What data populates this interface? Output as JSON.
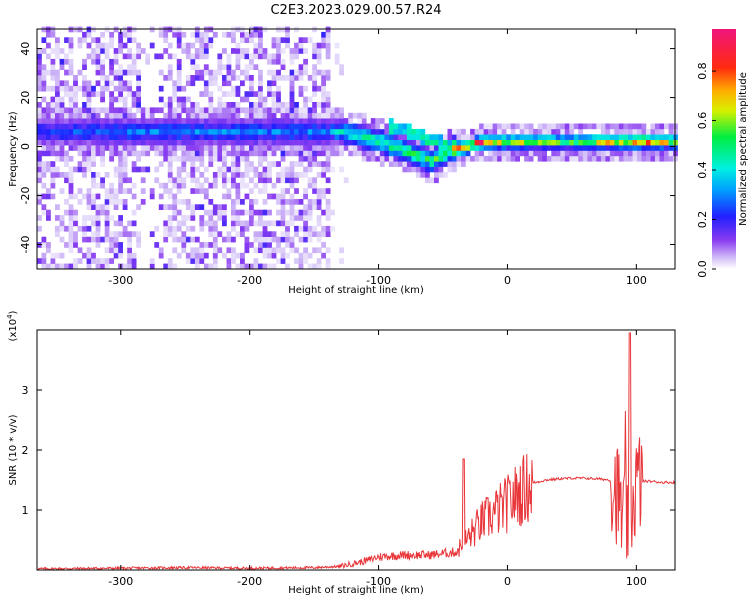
{
  "title": "C2E3.2023.029.00.57.R24",
  "chart_data": [
    {
      "type": "heatmap",
      "xlabel": "Height of straight line (km)",
      "ylabel": "Frequency (Hz)",
      "xlim": [
        -365,
        130
      ],
      "ylim": [
        -50,
        48
      ],
      "xticks": [
        -300,
        -200,
        -100,
        0,
        100
      ],
      "yticks": [
        -40,
        -20,
        0,
        20,
        40
      ],
      "colorbar": {
        "label": "Normalized spectral amplitude",
        "range": [
          0.0,
          0.97
        ],
        "ticks": [
          0.0,
          0.2,
          0.4,
          0.6,
          0.8
        ],
        "colormap": "rainbow (white-violet-blue-cyan-green-yellow-orange-red-magenta)"
      },
      "features": {
        "noise_region_x": [
          -365,
          -140
        ],
        "signal_band": [
          {
            "x": -365,
            "freq": 5,
            "amplitude": 0.25
          },
          {
            "x": -300,
            "freq": 5,
            "amplitude": 0.3
          },
          {
            "x": -140,
            "freq": 5,
            "amplitude": 0.3
          },
          {
            "x": -130,
            "freq": 5,
            "amplitude": 0.45
          },
          {
            "x": -100,
            "freq": 1,
            "amplitude": 0.5
          },
          {
            "x": -80,
            "freq": -3,
            "amplitude": 0.55
          },
          {
            "x": -60,
            "freq": -7,
            "amplitude": 0.5
          },
          {
            "x": -45,
            "freq": -2,
            "amplitude": 0.6
          },
          {
            "x": -40,
            "freq": -2,
            "amplitude": 0.9
          },
          {
            "x": -20,
            "freq": 1,
            "amplitude": 0.85
          },
          {
            "x": 0,
            "freq": 1,
            "amplitude": 0.7
          },
          {
            "x": 50,
            "freq": 1,
            "amplitude": 0.6
          },
          {
            "x": 100,
            "freq": 1,
            "amplitude": 0.85
          },
          {
            "x": 130,
            "freq": 1,
            "amplitude": 0.65
          }
        ]
      }
    },
    {
      "type": "line",
      "xlabel": "Height of straight line (km)",
      "ylabel": "SNR (10 * v/v)",
      "yscale_label": "(x10",
      "yscale_exp": "4",
      "yscale_close": ")",
      "xlim": [
        -365,
        130
      ],
      "ylim": [
        0,
        4
      ],
      "xticks": [
        -300,
        -200,
        -100,
        0,
        100
      ],
      "yticks": [
        1,
        2,
        3
      ],
      "series": [
        {
          "color": "#e8363a",
          "x": [
            -365,
            -300,
            -250,
            -200,
            -150,
            -130,
            -110,
            -100,
            -80,
            -60,
            -40,
            -30,
            -20,
            -10,
            0,
            10,
            20,
            30,
            40,
            50,
            60,
            70,
            80,
            85,
            90,
            95,
            100,
            105,
            110,
            120,
            130
          ],
          "y": [
            0.02,
            0.03,
            0.04,
            0.03,
            0.04,
            0.06,
            0.15,
            0.22,
            0.25,
            0.25,
            0.3,
            0.55,
            0.8,
            0.95,
            1.1,
            1.3,
            1.45,
            1.5,
            1.52,
            1.53,
            1.53,
            1.52,
            1.5,
            1.3,
            0.8,
            0.9,
            1.45,
            1.48,
            1.48,
            1.46,
            1.46
          ]
        }
      ]
    }
  ]
}
